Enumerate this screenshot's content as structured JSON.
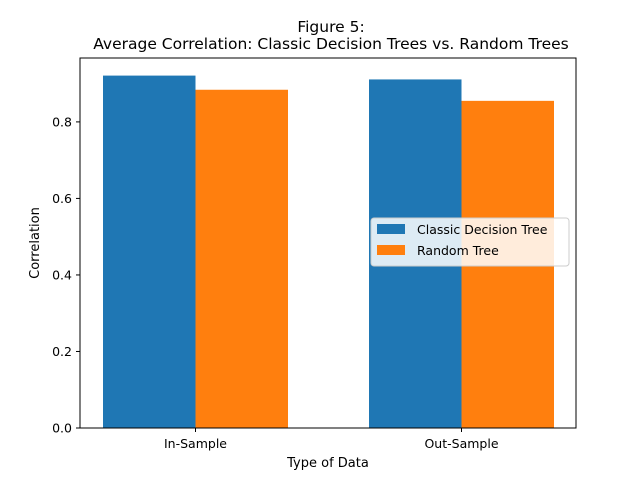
{
  "chart_data": {
    "type": "bar",
    "title": "Figure 5:",
    "subtitle": "Average Correlation: Classic Decision Trees vs. Random Trees",
    "xlabel": "Type of Data",
    "ylabel": "Correlation",
    "categories": [
      "In-Sample",
      "Out-Sample"
    ],
    "series": [
      {
        "name": "Classic Decision Tree",
        "color": "#1f77b4",
        "values": [
          0.921,
          0.911
        ]
      },
      {
        "name": "Random Tree",
        "color": "#ff7f0e",
        "values": [
          0.884,
          0.855
        ]
      }
    ],
    "ylim": [
      0,
      0.967
    ],
    "yticks": [
      0.0,
      0.2,
      0.4,
      0.6,
      0.8
    ],
    "ytick_labels": [
      "0.0",
      "0.2",
      "0.4",
      "0.6",
      "0.8"
    ],
    "grid": false,
    "legend_position": "center-right"
  }
}
